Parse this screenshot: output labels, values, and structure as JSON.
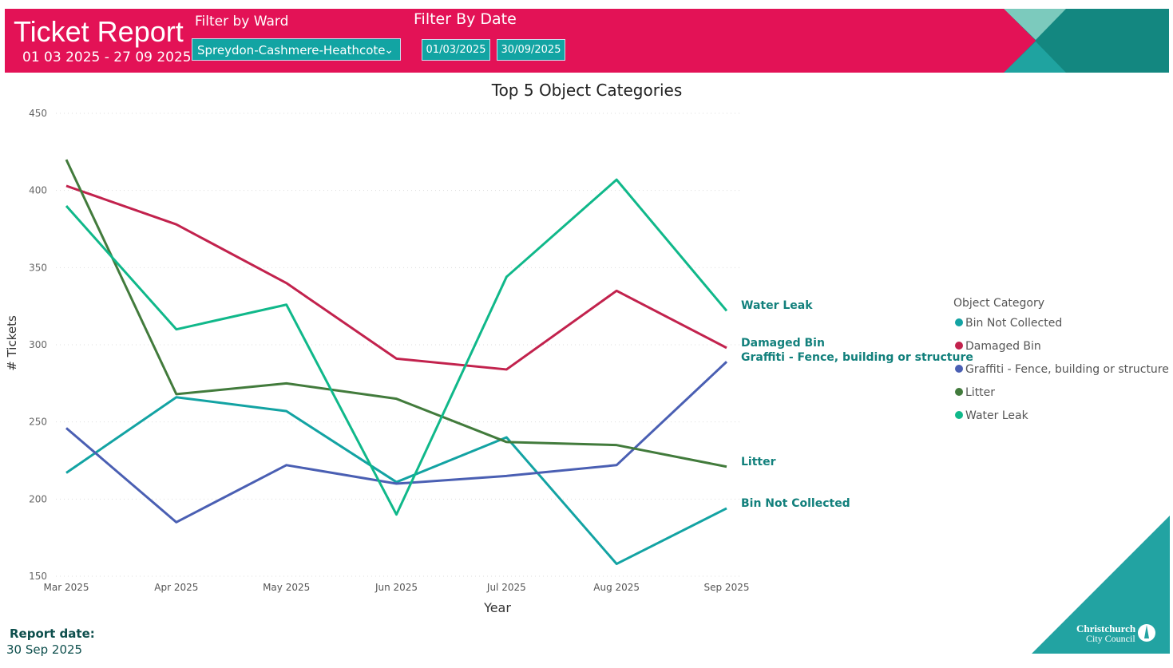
{
  "header": {
    "title": "Ticket Report",
    "date_range": "01 03 2025 - 27 09 2025",
    "ward_filter_label": "Filter by Ward",
    "ward_selected": "Spreydon-Cashmere-Heathcote",
    "date_filter_label": "Filter By Date",
    "date_from": "01/03/2025",
    "date_to": "30/09/2025",
    "colors": {
      "banner": "#e31256",
      "accent": "#12a4a3",
      "dark_teal": "#138780",
      "light_teal": "#7ccabd"
    }
  },
  "footer": {
    "report_date_label": "Report date:",
    "report_date": "30 Sep 2025",
    "logo_text": "Christchurch City Council"
  },
  "chart_data": {
    "type": "line",
    "title": "Top 5 Object Categories",
    "xlabel": "Year",
    "ylabel": "# Tickets",
    "categories": [
      "Mar 2025",
      "Apr 2025",
      "May 2025",
      "Jun 2025",
      "Jul 2025",
      "Aug 2025",
      "Sep 2025"
    ],
    "ylim": [
      150,
      450
    ],
    "yticks": [
      150,
      200,
      250,
      300,
      350,
      400,
      450
    ],
    "grid": true,
    "legend_title": "Object Category",
    "legend_position": "right",
    "series": [
      {
        "name": "Bin Not Collected",
        "color": "#13a3a3",
        "values": [
          217,
          266,
          257,
          211,
          240,
          158,
          194
        ]
      },
      {
        "name": "Damaged Bin",
        "color": "#c2224d",
        "values": [
          403,
          378,
          340,
          291,
          284,
          335,
          298
        ]
      },
      {
        "name": "Graffiti - Fence, building or structure",
        "color": "#4a5fb3",
        "values": [
          246,
          185,
          222,
          210,
          215,
          222,
          289
        ]
      },
      {
        "name": "Litter",
        "color": "#427b3c",
        "values": [
          420,
          268,
          275,
          265,
          237,
          235,
          221
        ]
      },
      {
        "name": "Water Leak",
        "color": "#10b88a",
        "values": [
          390,
          310,
          326,
          190,
          344,
          407,
          322
        ]
      }
    ],
    "end_labels": [
      {
        "series": "Water Leak",
        "text": "Water Leak"
      },
      {
        "series": "Damaged Bin",
        "text": "Damaged Bin"
      },
      {
        "series": "Graffiti - Fence, building or structure",
        "text": "Graffiti - Fence, building or structure"
      },
      {
        "series": "Litter",
        "text": "Litter"
      },
      {
        "series": "Bin Not Collected",
        "text": "Bin Not Collected"
      }
    ]
  }
}
